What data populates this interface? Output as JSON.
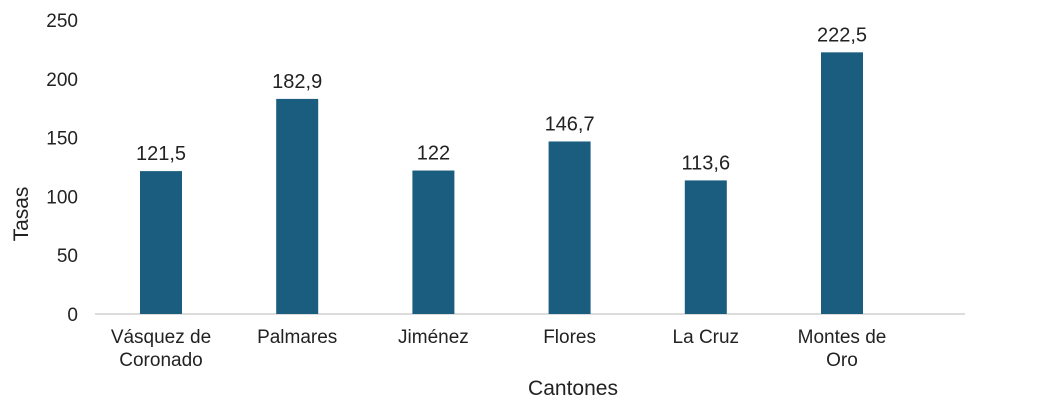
{
  "chart_data": {
    "type": "bar",
    "title": "",
    "xlabel": "Cantones",
    "ylabel": "Tasas",
    "ylim": [
      0,
      250
    ],
    "yticks": [
      "0",
      "50",
      "100",
      "150",
      "200",
      "250"
    ],
    "categories": [
      [
        "Vásquez de",
        "Coronado"
      ],
      [
        "Palmares"
      ],
      [
        "Jiménez"
      ],
      [
        "Flores"
      ],
      [
        "La Cruz"
      ],
      [
        "Montes de",
        "Oro"
      ]
    ],
    "values": [
      121.5,
      182.9,
      122,
      146.7,
      113.6,
      222.5
    ],
    "data_labels": [
      "121,5",
      "182,9",
      "122",
      "146,7",
      "113,6",
      "222,5"
    ],
    "bar_color": "#1b5d7e",
    "grid": false
  }
}
